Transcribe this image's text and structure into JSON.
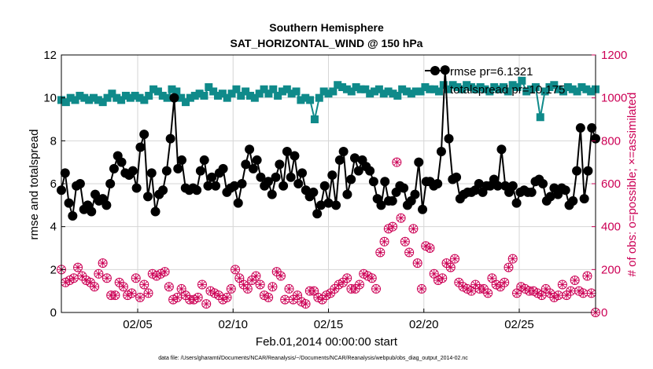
{
  "chart_data": {
    "type": "line",
    "title": "Southern Hemisphere",
    "subtitle": "SAT_HORIZONTAL_WIND @ 150 hPa",
    "xlabel": "Feb.01,2014 00:00:00 start",
    "ylabel": "rmse and totalspread",
    "ylabel_right": "# of obs: o=possible; ×=assimilated",
    "footnote": "data file: /Users/gharamti/Documents/NCAR/Reanalysis/~/Documents/NCAR/Reanalysis/webpub/obs_diag_output_2014-02.nc",
    "xlim": [
      1,
      29
    ],
    "ylim": [
      0,
      12
    ],
    "ylim_right": [
      0,
      1200
    ],
    "x_ticks": [
      5,
      10,
      15,
      20,
      25
    ],
    "x_tick_labels": [
      "02/05",
      "02/10",
      "02/15",
      "02/20",
      "02/25"
    ],
    "y_ticks": [
      "0",
      "2",
      "4",
      "6",
      "8",
      "10",
      "12"
    ],
    "y_ticks_right": [
      "0",
      "200",
      "400",
      "600",
      "800",
      "1000",
      "1200"
    ],
    "grid": true,
    "legend_position": "top-right",
    "colors": {
      "rmse": "#000000",
      "spread": "#0f8a8a",
      "obs": "#cc0055"
    },
    "x_step_days": 0.25,
    "series": [
      {
        "name": "rmse pr=6.1321",
        "axis": "left",
        "values": [
          5.7,
          6.5,
          5.1,
          4.5,
          5.9,
          6.0,
          4.8,
          5.0,
          4.7,
          5.5,
          5.2,
          5.3,
          5.0,
          6.0,
          6.7,
          7.3,
          7.0,
          6.5,
          6.4,
          6.6,
          5.8,
          7.7,
          8.3,
          5.4,
          6.5,
          4.7,
          5.5,
          5.7,
          6.6,
          8.1,
          10.0,
          6.7,
          7.1,
          5.8,
          5.7,
          5.8,
          5.7,
          6.6,
          7.1,
          5.9,
          6.3,
          5.9,
          6.5,
          6.7,
          5.6,
          5.8,
          5.9,
          5.1,
          6.0,
          6.9,
          7.6,
          6.7,
          7.1,
          6.3,
          5.9,
          6.1,
          5.5,
          6.3,
          6.9,
          5.9,
          7.5,
          6.3,
          7.3,
          6.0,
          6.5,
          5.7,
          5.4,
          5.6,
          4.6,
          5.0,
          5.9,
          5.1,
          6.4,
          5.0,
          7.1,
          7.5,
          5.5,
          6.2,
          7.2,
          6.6,
          7.1,
          6.8,
          6.6,
          6.1,
          5.3,
          5.0,
          6.1,
          5.2,
          5.2,
          5.6,
          5.9,
          5.8,
          5.0,
          5.2,
          5.5,
          7.0,
          4.8,
          6.1,
          6.1,
          5.9,
          6.0,
          7.5,
          11.3,
          8.1,
          6.2,
          6.3,
          5.3,
          5.5,
          5.6,
          5.6,
          5.7,
          6.0,
          5.6,
          5.9,
          5.9,
          6.2,
          5.9
        ],
        "extra_values": [
          7.6,
          5.9,
          5.6,
          5.9,
          5.1,
          5.6,
          5.7,
          5.6,
          5.6,
          6.1,
          6.2,
          6.0,
          5.2,
          5.4,
          5.8,
          5.5,
          5.8,
          5.7,
          5.0,
          5.2,
          6.6,
          8.6,
          5.3,
          6.6,
          8.6,
          8.1
        ]
      },
      {
        "name": "totalspread pr=10.175",
        "axis": "left",
        "values": [
          9.9,
          9.8,
          10.0,
          9.9,
          10.1,
          10.0,
          9.9,
          10.0,
          9.9,
          9.8,
          10.0,
          10.2,
          10.0,
          9.9,
          10.1,
          10.0,
          10.1,
          10.0,
          9.9,
          10.1,
          10.4,
          10.3,
          10.1,
          10.0,
          10.4,
          10.3,
          10.0,
          9.8,
          10.0,
          10.1,
          10.2,
          10.1,
          10.5,
          10.3,
          10.1,
          10.2,
          10.0,
          10.2,
          10.4,
          10.1,
          10.3,
          10.1,
          10.0,
          10.2,
          10.4,
          10.2,
          10.4,
          10.1,
          10.3,
          10.4,
          10.2,
          10.3,
          9.9,
          10.0,
          9.9,
          9.0,
          10.0,
          10.3,
          10.2,
          10.3,
          10.6,
          10.5,
          10.4,
          10.3,
          10.5,
          10.4,
          10.4,
          10.2,
          10.3,
          10.4,
          10.2,
          10.3,
          10.2,
          10.1,
          10.4,
          10.3,
          10.2,
          10.3,
          10.3,
          10.5,
          10.4,
          10.4,
          10.3,
          10.6,
          10.4,
          10.6,
          10.5,
          10.4,
          10.6,
          10.5,
          10.4,
          10.5,
          10.4,
          10.3,
          10.5,
          10.4,
          10.5,
          10.3,
          10.6,
          10.5,
          10.8,
          10.3,
          10.4,
          10.5,
          9.1,
          10.3,
          10.5,
          10.6,
          10.4,
          10.3,
          10.5,
          10.4,
          10.3,
          10.5,
          10.4,
          10.3,
          10.4
        ]
      },
      {
        "name": "obs",
        "axis": "right",
        "values": [
          200,
          140,
          150,
          160,
          210,
          170,
          150,
          140,
          120,
          180,
          230,
          160,
          80,
          80,
          140,
          120,
          80,
          90,
          160,
          70,
          130,
          90,
          180,
          170,
          180,
          190,
          120,
          60,
          70,
          110,
          80,
          60,
          60,
          70,
          130,
          40,
          100,
          90,
          80,
          60,
          70,
          110,
          200,
          160,
          130,
          110,
          150,
          170,
          130,
          80,
          70,
          120,
          190,
          170,
          60,
          110,
          60,
          80,
          50,
          40,
          100,
          100,
          70,
          60,
          80,
          90,
          110,
          130,
          140,
          160,
          110,
          110,
          130,
          180,
          170,
          160,
          110,
          280,
          330,
          390,
          400,
          700,
          440,
          330,
          280,
          390,
          230,
          110,
          310,
          300,
          180,
          150,
          160,
          230,
          210,
          250,
          140,
          120,
          110,
          100,
          130,
          110,
          110,
          90,
          160,
          130,
          120,
          140,
          210,
          250,
          90,
          120,
          110,
          100,
          100,
          90,
          80,
          110,
          90,
          70,
          80,
          130,
          80,
          100,
          150,
          100,
          90,
          170,
          90,
          0
        ]
      }
    ]
  }
}
